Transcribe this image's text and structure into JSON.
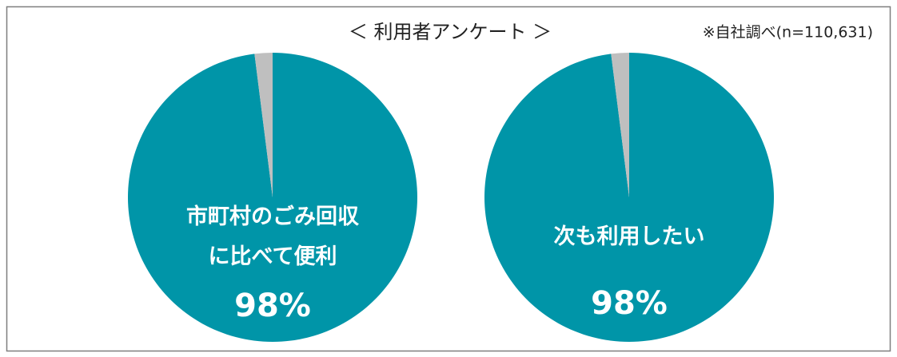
{
  "title": "＜ 利用者アンケート ＞",
  "note": "※自社調べ(n=110,631)",
  "chart_data": [
    {
      "type": "pie",
      "categories": [
        "市町村のごみ回収\nに比べて便利",
        null
      ],
      "values": [
        98,
        2
      ],
      "value_labels": [
        "98%",
        null
      ],
      "colors": [
        "#0095a8",
        "#bfbfbf"
      ]
    },
    {
      "type": "pie",
      "categories": [
        "次も利用したい",
        null
      ],
      "values": [
        98,
        2
      ],
      "value_labels": [
        "98%",
        null
      ],
      "colors": [
        "#0095a8",
        "#bfbfbf"
      ]
    }
  ]
}
